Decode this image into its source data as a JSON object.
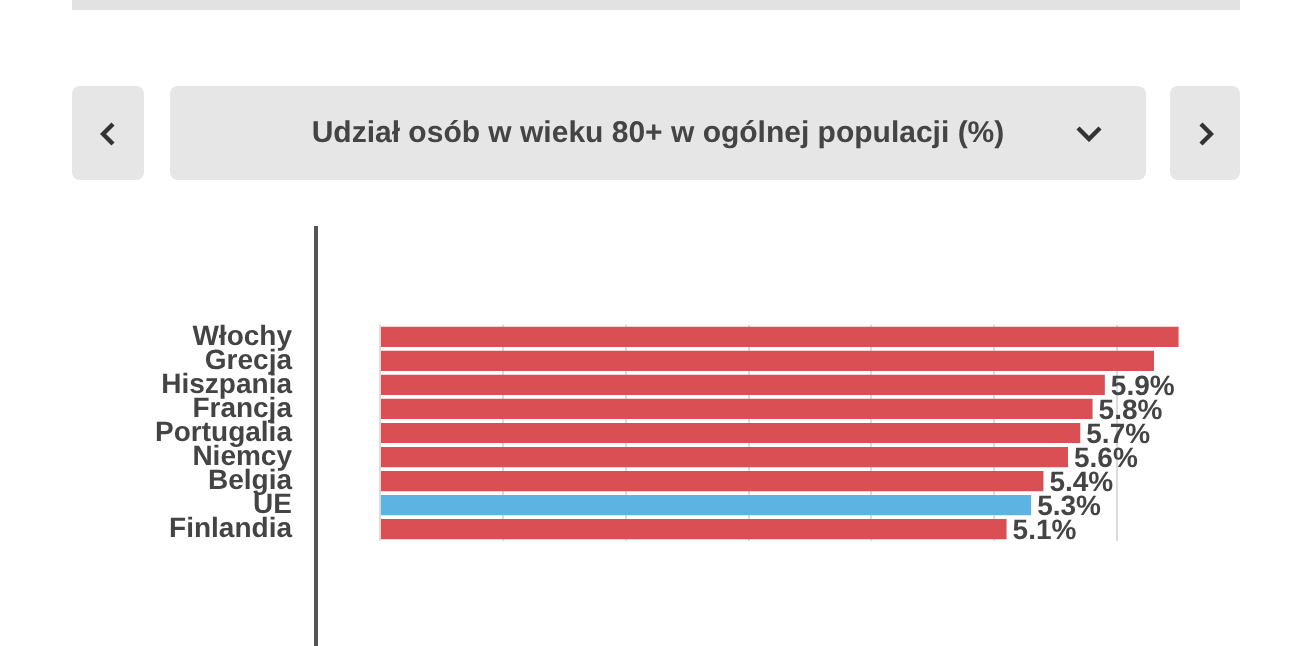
{
  "chart_data": {
    "type": "bar",
    "orientation": "horizontal",
    "title": "Udział osób w wieku 80+ w ogólnej populacji (%)",
    "categories": [
      "Włochy",
      "Grecja",
      "Hiszpania",
      "Francja",
      "Portugalia",
      "Niemcy",
      "Belgia",
      "UE",
      "Finlandia"
    ],
    "values": [
      6.5,
      6.3,
      5.9,
      5.8,
      5.7,
      5.6,
      5.4,
      5.3,
      5.1
    ],
    "colors": [
      "#d94f54",
      "#d94f54",
      "#d94f54",
      "#d94f54",
      "#d94f54",
      "#d94f54",
      "#d94f54",
      "#5db4e3",
      "#d94f54"
    ],
    "value_labels": [
      null,
      null,
      "5.9%",
      "5.8%",
      "5.7%",
      "5.6%",
      "5.4%",
      "5.3%",
      "5.1%"
    ],
    "xticks": [
      {
        "value": 0,
        "label": null
      },
      {
        "value": 1,
        "label": null
      },
      {
        "value": 2,
        "label": null
      },
      {
        "value": 3,
        "label": null
      },
      {
        "value": 4,
        "label": null
      },
      {
        "value": 5,
        "label": null
      },
      {
        "value": 6,
        "label": null
      }
    ],
    "grid": "x",
    "tick_labels": "y",
    "legend": false
  }
}
